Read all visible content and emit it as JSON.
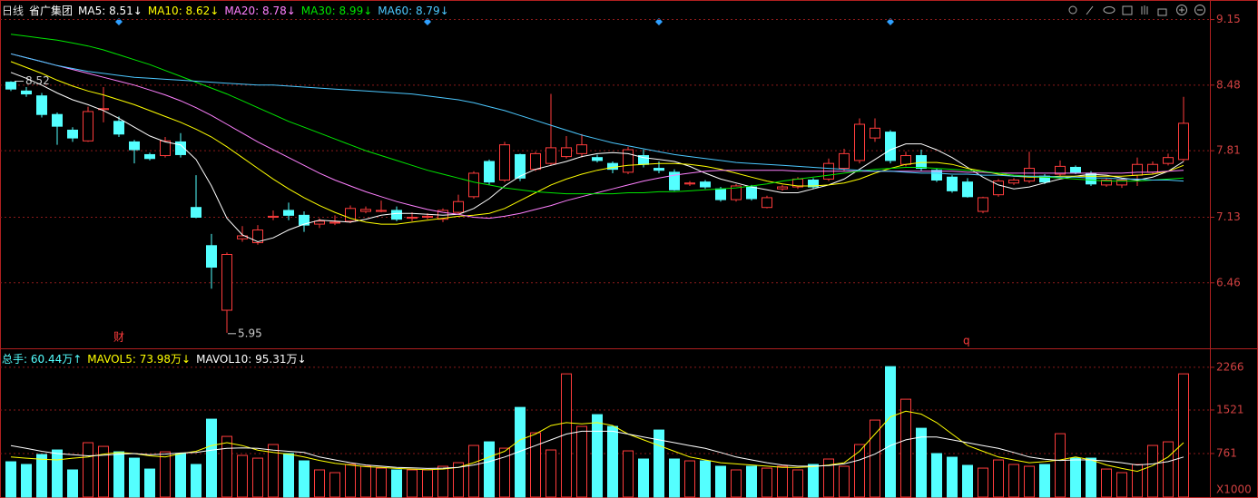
{
  "chart_data": [
    {
      "type": "candlestick",
      "title": "日线",
      "subtitle": "省广集团",
      "up_color": "#ff3c3c",
      "down_color": "#54ffff",
      "open": [
        8.51,
        8.42,
        8.37,
        8.18,
        8.02,
        7.91,
        8.23,
        8.11,
        7.9,
        7.77,
        7.76,
        7.9,
        7.23,
        6.84,
        6.18,
        6.91,
        6.87,
        7.13,
        7.2,
        7.15,
        7.06,
        7.07,
        7.09,
        7.19,
        7.19,
        7.2,
        7.12,
        7.13,
        7.11,
        7.18,
        7.34,
        7.7,
        7.51,
        7.77,
        7.62,
        7.68,
        7.75,
        7.78,
        7.74,
        7.68,
        7.59,
        7.76,
        7.63,
        7.59,
        7.47,
        7.49,
        7.42,
        7.31,
        7.44,
        7.23,
        7.42,
        7.44,
        7.51,
        7.52,
        7.63,
        7.71,
        7.94,
        8.0,
        7.67,
        7.76,
        7.61,
        7.54,
        7.49,
        7.19,
        7.36,
        7.48,
        7.5,
        7.55,
        7.57,
        7.64,
        7.58,
        7.46,
        7.46,
        7.56,
        7.59,
        7.68,
        7.72
      ],
      "high": [
        8.52,
        8.46,
        8.4,
        8.2,
        8.05,
        8.26,
        8.46,
        8.16,
        7.92,
        7.79,
        7.95,
        7.99,
        7.56,
        6.96,
        6.77,
        7.04,
        7.05,
        7.2,
        7.28,
        7.19,
        7.12,
        7.15,
        7.25,
        7.24,
        7.3,
        7.24,
        7.18,
        7.17,
        7.22,
        7.36,
        7.6,
        7.72,
        7.9,
        7.78,
        7.8,
        8.39,
        7.96,
        7.98,
        7.77,
        7.7,
        7.85,
        7.82,
        7.7,
        7.62,
        7.5,
        7.51,
        7.44,
        7.47,
        7.46,
        7.35,
        7.46,
        7.54,
        7.53,
        7.73,
        7.83,
        8.14,
        8.14,
        8.02,
        7.8,
        7.82,
        7.63,
        7.56,
        7.53,
        7.34,
        7.52,
        7.53,
        7.8,
        7.57,
        7.71,
        7.66,
        7.6,
        7.53,
        7.53,
        7.74,
        7.7,
        7.78,
        8.36
      ],
      "low": [
        8.42,
        8.36,
        8.15,
        7.87,
        7.9,
        7.9,
        8.1,
        7.95,
        7.68,
        7.71,
        7.74,
        7.74,
        7.12,
        6.4,
        5.95,
        6.88,
        6.85,
        7.1,
        7.1,
        6.98,
        7.02,
        7.05,
        7.07,
        7.17,
        7.18,
        7.09,
        7.09,
        7.11,
        7.08,
        7.16,
        7.32,
        7.46,
        7.49,
        7.5,
        7.6,
        7.66,
        7.73,
        7.74,
        7.69,
        7.58,
        7.57,
        7.64,
        7.58,
        7.4,
        7.45,
        7.42,
        7.29,
        7.29,
        7.3,
        7.22,
        7.4,
        7.42,
        7.42,
        7.5,
        7.6,
        7.68,
        7.9,
        7.68,
        7.65,
        7.6,
        7.49,
        7.38,
        7.33,
        7.17,
        7.34,
        7.46,
        7.48,
        7.47,
        7.55,
        7.57,
        7.45,
        7.44,
        7.43,
        7.45,
        7.57,
        7.66,
        7.7
      ],
      "close": [
        8.44,
        8.39,
        8.18,
        8.06,
        7.94,
        8.21,
        8.24,
        7.98,
        7.82,
        7.73,
        7.91,
        7.77,
        7.13,
        6.62,
        6.75,
        6.94,
        7.0,
        7.14,
        7.15,
        7.05,
        7.09,
        7.08,
        7.22,
        7.21,
        7.2,
        7.11,
        7.13,
        7.14,
        7.2,
        7.29,
        7.58,
        7.49,
        7.87,
        7.53,
        7.78,
        7.84,
        7.84,
        7.87,
        7.71,
        7.62,
        7.82,
        7.67,
        7.61,
        7.41,
        7.48,
        7.44,
        7.31,
        7.45,
        7.32,
        7.33,
        7.44,
        7.52,
        7.44,
        7.68,
        7.78,
        8.08,
        8.04,
        7.71,
        7.76,
        7.63,
        7.51,
        7.4,
        7.34,
        7.33,
        7.5,
        7.51,
        7.63,
        7.49,
        7.65,
        7.59,
        7.47,
        7.51,
        7.51,
        7.67,
        7.67,
        7.74,
        8.09
      ],
      "series": [
        {
          "name": "MA5: 8.51↓",
          "color": "#ffffff",
          "values": [
            8.61,
            8.55,
            8.48,
            8.4,
            8.33,
            8.28,
            8.22,
            8.14,
            8.05,
            7.96,
            7.9,
            7.87,
            7.72,
            7.45,
            7.12,
            6.95,
            6.88,
            6.92,
            7.0,
            7.06,
            7.1,
            7.09,
            7.08,
            7.11,
            7.15,
            7.17,
            7.17,
            7.16,
            7.15,
            7.16,
            7.22,
            7.32,
            7.45,
            7.55,
            7.62,
            7.66,
            7.7,
            7.75,
            7.78,
            7.79,
            7.78,
            7.74,
            7.72,
            7.7,
            7.65,
            7.58,
            7.52,
            7.48,
            7.44,
            7.41,
            7.38,
            7.38,
            7.42,
            7.46,
            7.52,
            7.62,
            7.72,
            7.82,
            7.88,
            7.88,
            7.82,
            7.74,
            7.64,
            7.54,
            7.46,
            7.42,
            7.44,
            7.48,
            7.52,
            7.55,
            7.57,
            7.56,
            7.53,
            7.51,
            7.54,
            7.6,
            7.7
          ]
        },
        {
          "name": "MA10: 8.62↓",
          "color": "#ffff00",
          "values": [
            8.72,
            8.66,
            8.6,
            8.53,
            8.47,
            8.42,
            8.38,
            8.33,
            8.28,
            8.22,
            8.16,
            8.1,
            8.03,
            7.95,
            7.85,
            7.74,
            7.63,
            7.52,
            7.42,
            7.33,
            7.25,
            7.18,
            7.12,
            7.08,
            7.06,
            7.06,
            7.08,
            7.1,
            7.12,
            7.14,
            7.15,
            7.17,
            7.22,
            7.3,
            7.38,
            7.46,
            7.52,
            7.57,
            7.61,
            7.64,
            7.66,
            7.67,
            7.68,
            7.68,
            7.67,
            7.65,
            7.62,
            7.58,
            7.54,
            7.5,
            7.47,
            7.45,
            7.45,
            7.46,
            7.48,
            7.52,
            7.58,
            7.63,
            7.67,
            7.69,
            7.69,
            7.67,
            7.63,
            7.6,
            7.57,
            7.55,
            7.54,
            7.54,
            7.55,
            7.55,
            7.55,
            7.55,
            7.55,
            7.56,
            7.57,
            7.6,
            7.66
          ]
        },
        {
          "name": "MA20: 8.78↓",
          "color": "#ff80ff",
          "values": [
            8.8,
            8.76,
            8.72,
            8.68,
            8.64,
            8.6,
            8.56,
            8.52,
            8.48,
            8.43,
            8.38,
            8.32,
            8.25,
            8.17,
            8.08,
            7.99,
            7.9,
            7.82,
            7.74,
            7.66,
            7.58,
            7.51,
            7.45,
            7.39,
            7.34,
            7.29,
            7.25,
            7.21,
            7.18,
            7.16,
            7.13,
            7.12,
            7.14,
            7.17,
            7.21,
            7.25,
            7.3,
            7.34,
            7.38,
            7.42,
            7.46,
            7.5,
            7.53,
            7.56,
            7.58,
            7.6,
            7.61,
            7.61,
            7.61,
            7.61,
            7.61,
            7.6,
            7.6,
            7.6,
            7.6,
            7.6,
            7.6,
            7.6,
            7.6,
            7.6,
            7.6,
            7.6,
            7.59,
            7.59,
            7.58,
            7.58,
            7.58,
            7.58,
            7.58,
            7.58,
            7.58,
            7.58,
            7.58,
            7.59,
            7.59,
            7.6,
            7.61
          ]
        },
        {
          "name": "MA30: 8.99↓",
          "color": "#00e600",
          "values": [
            9.0,
            8.98,
            8.96,
            8.94,
            8.91,
            8.88,
            8.84,
            8.79,
            8.74,
            8.69,
            8.63,
            8.57,
            8.51,
            8.45,
            8.39,
            8.32,
            8.25,
            8.18,
            8.11,
            8.05,
            7.99,
            7.93,
            7.87,
            7.81,
            7.76,
            7.71,
            7.66,
            7.61,
            7.57,
            7.53,
            7.49,
            7.46,
            7.43,
            7.41,
            7.39,
            7.38,
            7.37,
            7.37,
            7.37,
            7.37,
            7.38,
            7.38,
            7.39,
            7.39,
            7.4,
            7.41,
            7.42,
            7.43,
            7.45,
            7.47,
            7.5,
            7.52,
            7.54,
            7.56,
            7.58,
            7.6,
            7.62,
            7.63,
            7.64,
            7.64,
            7.63,
            7.62,
            7.61,
            7.6,
            7.58,
            7.56,
            7.55,
            7.54,
            7.53,
            7.52,
            7.51,
            7.5,
            7.5,
            7.5,
            7.51,
            7.52,
            7.53
          ]
        },
        {
          "name": "MA60: 8.79↓",
          "color": "#4cc8ff",
          "values": [
            8.8,
            8.76,
            8.72,
            8.68,
            8.65,
            8.62,
            8.6,
            8.58,
            8.56,
            8.55,
            8.54,
            8.53,
            8.52,
            8.51,
            8.5,
            8.49,
            8.48,
            8.48,
            8.47,
            8.46,
            8.45,
            8.44,
            8.43,
            8.42,
            8.41,
            8.4,
            8.39,
            8.37,
            8.35,
            8.33,
            8.3,
            8.26,
            8.22,
            8.17,
            8.12,
            8.07,
            8.02,
            7.97,
            7.93,
            7.89,
            7.86,
            7.83,
            7.8,
            7.77,
            7.75,
            7.73,
            7.71,
            7.69,
            7.68,
            7.67,
            7.66,
            7.65,
            7.64,
            7.63,
            7.62,
            7.61,
            7.6,
            7.6,
            7.59,
            7.58,
            7.58,
            7.57,
            7.57,
            7.56,
            7.56,
            7.55,
            7.55,
            7.55,
            7.54,
            7.54,
            7.53,
            7.53,
            7.52,
            7.52,
            7.51,
            7.51,
            7.5
          ]
        }
      ],
      "ylim": [
        5.8,
        9.22
      ],
      "yticks": [
        9.15,
        8.48,
        7.81,
        7.13,
        6.46
      ],
      "annotations": [
        "8.52",
        "5.95",
        "财",
        "q"
      ]
    },
    {
      "type": "bar",
      "title": "总手: 60.44万↑",
      "unit_label": "X1000",
      "values": [
        617,
        570,
        744,
        823,
        475,
        950,
        886,
        791,
        680,
        490,
        790,
        760,
        570,
        1361,
        1060,
        728,
        680,
        918,
        760,
        633,
        475,
        427,
        570,
        538,
        506,
        475,
        475,
        475,
        538,
        601,
        902,
        965,
        854,
        1566,
        1123,
        823,
        2152,
        1234,
        1440,
        1234,
        807,
        665,
        1171,
        665,
        633,
        633,
        538,
        475,
        538,
        506,
        538,
        475,
        570,
        665,
        538,
        918,
        1345,
        2278,
        1709,
        1202,
        760,
        696,
        554,
        506,
        649,
        570,
        538,
        570,
        1107,
        680,
        680,
        490,
        427,
        570,
        902,
        965,
        2152
      ],
      "series": [
        {
          "name": "MAVOL5: 73.98万↓",
          "color": "#ffff00",
          "values": [
            700,
            680,
            660,
            650,
            680,
            700,
            750,
            780,
            760,
            720,
            700,
            760,
            800,
            900,
            950,
            900,
            820,
            780,
            750,
            700,
            640,
            590,
            560,
            530,
            520,
            500,
            490,
            480,
            490,
            520,
            600,
            700,
            800,
            1000,
            1100,
            1250,
            1300,
            1280,
            1300,
            1250,
            1100,
            1000,
            900,
            800,
            700,
            650,
            600,
            580,
            560,
            540,
            520,
            520,
            530,
            560,
            600,
            800,
            1100,
            1400,
            1500,
            1450,
            1300,
            1100,
            900,
            800,
            700,
            650,
            600,
            620,
            650,
            700,
            650,
            560,
            500,
            450,
            550,
            700,
            950
          ]
        },
        {
          "name": "MAVOL10: 95.31万↓",
          "color": "#ffffff",
          "values": [
            900,
            850,
            800,
            760,
            740,
            720,
            730,
            750,
            760,
            740,
            750,
            770,
            780,
            820,
            850,
            860,
            850,
            820,
            800,
            780,
            700,
            650,
            600,
            560,
            540,
            520,
            510,
            500,
            505,
            520,
            560,
            620,
            700,
            800,
            900,
            1000,
            1100,
            1150,
            1150,
            1150,
            1100,
            1050,
            1000,
            950,
            900,
            850,
            780,
            700,
            650,
            600,
            560,
            540,
            540,
            550,
            580,
            650,
            750,
            900,
            1000,
            1050,
            1050,
            1000,
            950,
            900,
            850,
            780,
            700,
            660,
            640,
            650,
            650,
            630,
            600,
            560,
            580,
            620,
            700
          ]
        }
      ],
      "ylim": [
        0,
        2550
      ],
      "yticks": [
        2266,
        1521,
        761
      ]
    }
  ]
}
